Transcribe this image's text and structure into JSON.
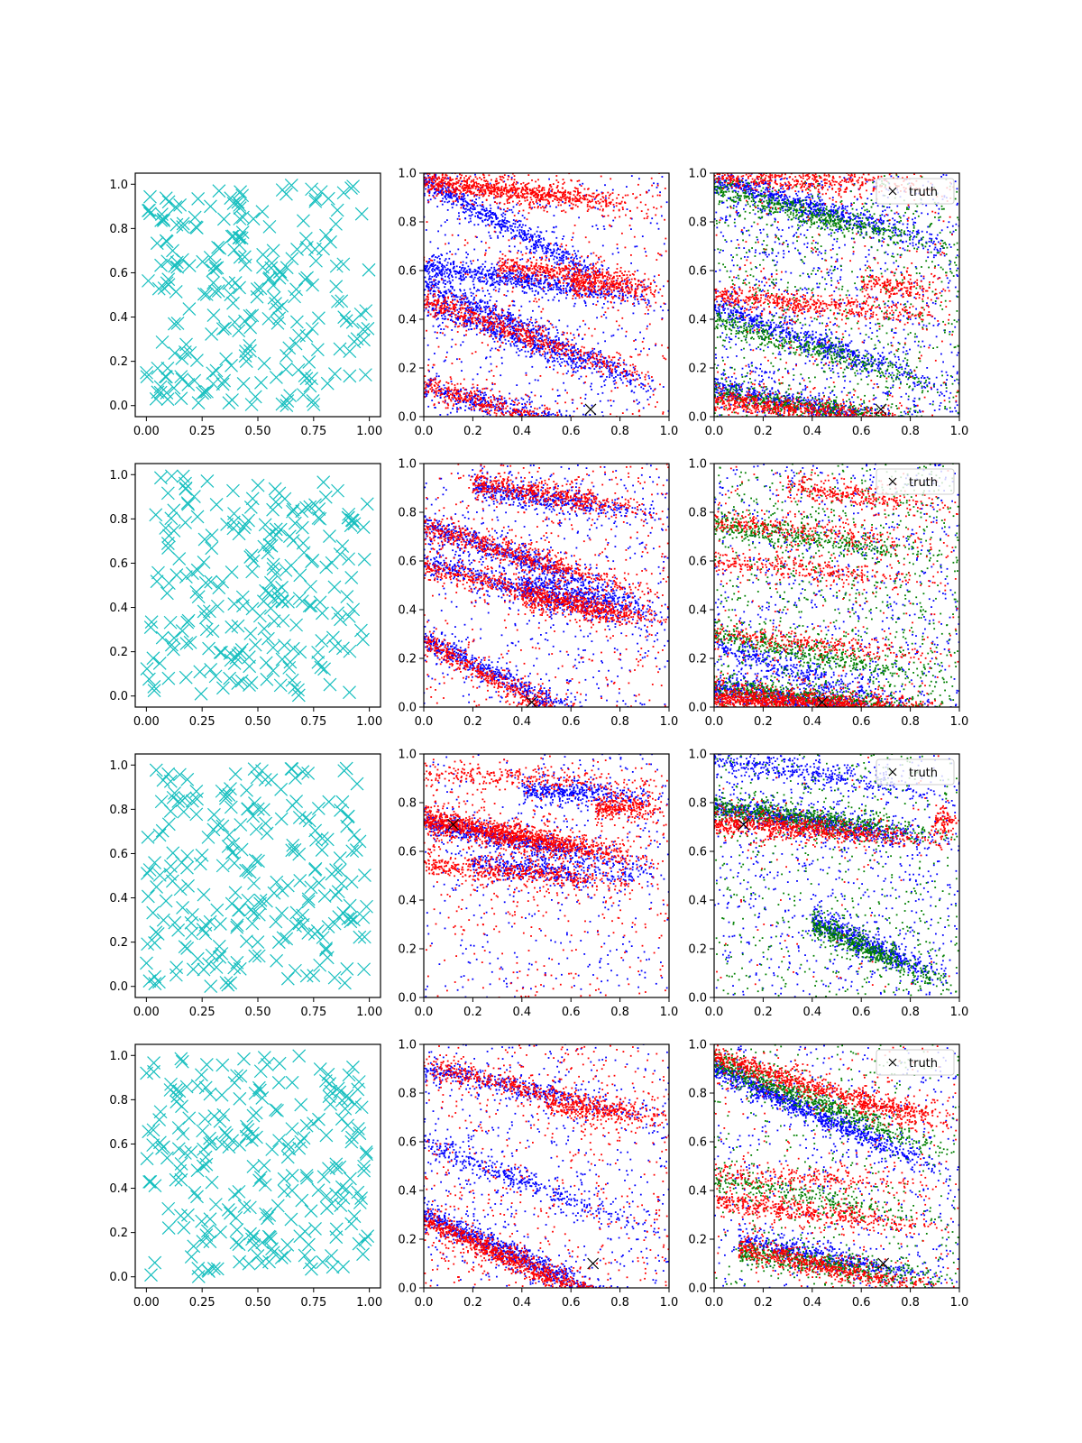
{
  "chart_data": [
    {
      "type": "scatter",
      "row": 1,
      "col": 1,
      "seed": 11,
      "n": 240,
      "marker": "x",
      "xlim": [
        -0.05,
        1.05
      ],
      "ylim": [
        -0.05,
        1.05
      ],
      "xticks": [
        "0.00",
        "0.25",
        "0.50",
        "0.75",
        "1.00"
      ],
      "yticks": [
        "0.0",
        "0.2",
        "0.4",
        "0.6",
        "0.8",
        "1.0"
      ],
      "series": [
        {
          "color": "#17bfbf"
        }
      ]
    },
    {
      "type": "scatter",
      "row": 1,
      "col": 2,
      "seed": 12,
      "xlim": [
        0,
        1
      ],
      "ylim": [
        0,
        1
      ],
      "xticks": [
        "0.0",
        "0.2",
        "0.4",
        "0.6",
        "0.8",
        "1.0"
      ],
      "yticks": [
        "0.0",
        "0.2",
        "0.4",
        "0.6",
        "0.8",
        "1.0"
      ],
      "truth": {
        "x": 0.68,
        "y": 0.03
      },
      "series": [
        {
          "color": "#0000ff",
          "bands": [
            [
              0.0,
              0.97,
              -0.55,
              700
            ],
            [
              0.0,
              0.45,
              -0.35,
              500
            ],
            [
              0.0,
              0.12,
              -0.25,
              500
            ],
            [
              0.0,
              0.62,
              -0.15,
              700
            ],
            [
              0.0,
              0.55,
              -0.45,
              600
            ]
          ],
          "noise": 400
        },
        {
          "color": "#ff0000",
          "bands": [
            [
              0.0,
              0.97,
              -0.12,
              900
            ],
            [
              0.0,
              0.48,
              -0.35,
              600
            ],
            [
              0.0,
              0.13,
              -0.3,
              500
            ],
            [
              0.3,
              0.62,
              -0.1,
              400
            ],
            [
              0.6,
              0.55,
              -0.1,
              300
            ]
          ],
          "noise": 350
        }
      ]
    },
    {
      "type": "scatter",
      "row": 1,
      "col": 3,
      "seed": 13,
      "xlim": [
        0,
        1
      ],
      "ylim": [
        0,
        1
      ],
      "xticks": [
        "0.0",
        "0.2",
        "0.4",
        "0.6",
        "0.8",
        "1.0"
      ],
      "yticks": [
        "0.0",
        "0.2",
        "0.4",
        "0.6",
        "0.8",
        "1.0"
      ],
      "truth": {
        "x": 0.68,
        "y": 0.03
      },
      "legend": {
        "label": "truth",
        "loc": "upper right"
      },
      "series": [
        {
          "color": "#0000ff",
          "bands": [
            [
              0.0,
              0.97,
              -0.28,
              700
            ],
            [
              0.0,
              0.45,
              -0.35,
              600
            ],
            [
              0.0,
              0.12,
              -0.2,
              600
            ]
          ],
          "noise": 900
        },
        {
          "color": "#008000",
          "bands": [
            [
              0.0,
              0.93,
              -0.25,
              500
            ],
            [
              0.0,
              0.4,
              -0.3,
              400
            ],
            [
              0.0,
              0.1,
              -0.15,
              400
            ]
          ],
          "noise": 700
        },
        {
          "color": "#ff0000",
          "bands": [
            [
              0.0,
              0.99,
              -0.05,
              500
            ],
            [
              0.0,
              0.5,
              -0.1,
              500
            ],
            [
              0.0,
              0.07,
              -0.12,
              700
            ],
            [
              0.6,
              0.55,
              -0.1,
              200
            ]
          ],
          "noise": 250
        }
      ]
    },
    {
      "type": "scatter",
      "row": 2,
      "col": 1,
      "seed": 21,
      "n": 230,
      "marker": "x",
      "xlim": [
        -0.05,
        1.05
      ],
      "ylim": [
        -0.05,
        1.05
      ],
      "xticks": [
        "0.00",
        "0.25",
        "0.50",
        "0.75",
        "1.00"
      ],
      "yticks": [
        "0.0",
        "0.2",
        "0.4",
        "0.6",
        "0.8",
        "1.0"
      ],
      "series": [
        {
          "color": "#17bfbf"
        }
      ]
    },
    {
      "type": "scatter",
      "row": 2,
      "col": 2,
      "seed": 22,
      "xlim": [
        0,
        1
      ],
      "ylim": [
        0,
        1
      ],
      "xticks": [
        "0.0",
        "0.2",
        "0.4",
        "0.6",
        "0.8",
        "1.0"
      ],
      "yticks": [
        "0.0",
        "0.2",
        "0.4",
        "0.6",
        "0.8",
        "1.0"
      ],
      "truth": {
        "x": 0.44,
        "y": 0.02
      },
      "series": [
        {
          "color": "#0000ff",
          "bands": [
            [
              0.0,
              0.75,
              -0.35,
              600
            ],
            [
              0.0,
              0.28,
              -0.5,
              600
            ],
            [
              0.0,
              0.6,
              -0.3,
              500
            ],
            [
              0.2,
              0.9,
              -0.15,
              500
            ],
            [
              0.4,
              0.5,
              -0.2,
              400
            ]
          ],
          "noise": 450
        },
        {
          "color": "#ff0000",
          "bands": [
            [
              0.0,
              0.74,
              -0.3,
              600
            ],
            [
              0.0,
              0.27,
              -0.55,
              600
            ],
            [
              0.0,
              0.58,
              -0.25,
              500
            ],
            [
              0.2,
              0.92,
              -0.15,
              500
            ],
            [
              0.4,
              0.45,
              -0.15,
              400
            ]
          ],
          "noise": 400
        }
      ]
    },
    {
      "type": "scatter",
      "row": 2,
      "col": 3,
      "seed": 23,
      "xlim": [
        0,
        1
      ],
      "ylim": [
        0,
        1
      ],
      "xticks": [
        "0.0",
        "0.2",
        "0.4",
        "0.6",
        "0.8",
        "1.0"
      ],
      "yticks": [
        "0.0",
        "0.2",
        "0.4",
        "0.6",
        "0.8",
        "1.0"
      ],
      "truth": {
        "x": 0.44,
        "y": 0.02
      },
      "legend": {
        "label": "truth",
        "loc": "upper right"
      },
      "series": [
        {
          "color": "#0000ff",
          "bands": [
            [
              0.0,
              0.08,
              -0.15,
              700
            ],
            [
              0.0,
              0.25,
              -0.3,
              400
            ]
          ],
          "noise": 700
        },
        {
          "color": "#008000",
          "bands": [
            [
              0.0,
              0.75,
              -0.15,
              400
            ],
            [
              0.0,
              0.3,
              -0.2,
              400
            ],
            [
              0.0,
              0.08,
              -0.1,
              500
            ]
          ],
          "noise": 800
        },
        {
          "color": "#ff0000",
          "bands": [
            [
              0.0,
              0.04,
              -0.06,
              1200
            ],
            [
              0.0,
              0.76,
              -0.1,
              300
            ],
            [
              0.0,
              0.6,
              -0.1,
              300
            ],
            [
              0.0,
              0.3,
              -0.1,
              300
            ],
            [
              0.3,
              0.9,
              -0.12,
              300
            ]
          ],
          "noise": 200
        }
      ]
    },
    {
      "type": "scatter",
      "row": 3,
      "col": 1,
      "seed": 31,
      "n": 240,
      "marker": "x",
      "xlim": [
        -0.05,
        1.05
      ],
      "ylim": [
        -0.05,
        1.05
      ],
      "xticks": [
        "0.00",
        "0.25",
        "0.50",
        "0.75",
        "1.00"
      ],
      "yticks": [
        "0.0",
        "0.2",
        "0.4",
        "0.6",
        "0.8",
        "1.0"
      ],
      "series": [
        {
          "color": "#17bfbf"
        }
      ]
    },
    {
      "type": "scatter",
      "row": 3,
      "col": 2,
      "seed": 32,
      "xlim": [
        0,
        1
      ],
      "ylim": [
        0,
        1
      ],
      "xticks": [
        "0.0",
        "0.2",
        "0.4",
        "0.6",
        "0.8",
        "1.0"
      ],
      "yticks": [
        "0.0",
        "0.2",
        "0.4",
        "0.6",
        "0.8",
        "1.0"
      ],
      "truth": {
        "x": 0.12,
        "y": 0.71
      },
      "series": [
        {
          "color": "#0000ff",
          "bands": [
            [
              0.0,
              0.72,
              -0.2,
              700
            ],
            [
              0.2,
              0.55,
              -0.1,
              400
            ],
            [
              0.4,
              0.85,
              -0.05,
              400
            ]
          ],
          "noise": 400
        },
        {
          "color": "#ff0000",
          "bands": [
            [
              0.0,
              0.73,
              -0.18,
              1300
            ],
            [
              0.0,
              0.92,
              -0.05,
              300
            ],
            [
              0.0,
              0.55,
              -0.1,
              500
            ],
            [
              0.7,
              0.78,
              0.0,
              300
            ]
          ],
          "noise": 350
        }
      ]
    },
    {
      "type": "scatter",
      "row": 3,
      "col": 3,
      "seed": 33,
      "xlim": [
        0,
        1
      ],
      "ylim": [
        0,
        1
      ],
      "xticks": [
        "0.0",
        "0.2",
        "0.4",
        "0.6",
        "0.8",
        "1.0"
      ],
      "yticks": [
        "0.0",
        "0.2",
        "0.4",
        "0.6",
        "0.8",
        "1.0"
      ],
      "truth": {
        "x": 0.12,
        "y": 0.71
      },
      "legend": {
        "label": "truth",
        "loc": "upper right"
      },
      "series": [
        {
          "color": "#0000ff",
          "bands": [
            [
              0.0,
              0.78,
              -0.15,
              800
            ],
            [
              0.4,
              0.32,
              -0.45,
              600
            ],
            [
              0.0,
              0.98,
              -0.15,
              400
            ]
          ],
          "noise": 600
        },
        {
          "color": "#008000",
          "bands": [
            [
              0.0,
              0.78,
              -0.12,
              700
            ],
            [
              0.4,
              0.3,
              -0.45,
              500
            ]
          ],
          "noise": 500
        },
        {
          "color": "#ff0000",
          "bands": [
            [
              0.0,
              0.72,
              -0.08,
              800
            ],
            [
              0.9,
              0.72,
              0.0,
              100
            ]
          ],
          "noise": 60
        }
      ]
    },
    {
      "type": "scatter",
      "row": 4,
      "col": 1,
      "seed": 41,
      "n": 240,
      "marker": "x",
      "xlim": [
        -0.05,
        1.05
      ],
      "ylim": [
        -0.05,
        1.05
      ],
      "xticks": [
        "0.00",
        "0.25",
        "0.50",
        "0.75",
        "1.00"
      ],
      "yticks": [
        "0.0",
        "0.2",
        "0.4",
        "0.6",
        "0.8",
        "1.0"
      ],
      "series": [
        {
          "color": "#17bfbf"
        }
      ]
    },
    {
      "type": "scatter",
      "row": 4,
      "col": 2,
      "seed": 42,
      "xlim": [
        0,
        1
      ],
      "ylim": [
        0,
        1
      ],
      "xticks": [
        "0.0",
        "0.2",
        "0.4",
        "0.6",
        "0.8",
        "1.0"
      ],
      "yticks": [
        "0.0",
        "0.2",
        "0.4",
        "0.6",
        "0.8",
        "1.0"
      ],
      "truth": {
        "x": 0.69,
        "y": 0.1
      },
      "series": [
        {
          "color": "#0000ff",
          "bands": [
            [
              0.0,
              0.3,
              -0.45,
              900
            ],
            [
              0.0,
              0.9,
              -0.2,
              400
            ],
            [
              0.0,
              0.6,
              -0.4,
              400
            ]
          ],
          "noise": 500
        },
        {
          "color": "#ff0000",
          "bands": [
            [
              0.0,
              0.28,
              -0.45,
              1000
            ],
            [
              0.0,
              0.92,
              -0.25,
              400
            ],
            [
              0.5,
              0.75,
              -0.1,
              300
            ]
          ],
          "noise": 500
        }
      ]
    },
    {
      "type": "scatter",
      "row": 4,
      "col": 3,
      "seed": 43,
      "xlim": [
        0,
        1
      ],
      "ylim": [
        0,
        1
      ],
      "xticks": [
        "0.0",
        "0.2",
        "0.4",
        "0.6",
        "0.8",
        "1.0"
      ],
      "yticks": [
        "0.0",
        "0.2",
        "0.4",
        "0.6",
        "0.8",
        "1.0"
      ],
      "truth": {
        "x": 0.69,
        "y": 0.1
      },
      "legend": {
        "label": "truth",
        "loc": "upper right"
      },
      "series": [
        {
          "color": "#0000ff",
          "bands": [
            [
              0.0,
              0.9,
              -0.45,
              1000
            ],
            [
              0.1,
              0.2,
              -0.2,
              500
            ]
          ],
          "noise": 500
        },
        {
          "color": "#008000",
          "bands": [
            [
              0.0,
              0.93,
              -0.4,
              700
            ],
            [
              0.1,
              0.15,
              -0.15,
              500
            ],
            [
              0.0,
              0.45,
              -0.2,
              300
            ]
          ],
          "noise": 400
        },
        {
          "color": "#ff0000",
          "bands": [
            [
              0.0,
              0.95,
              -0.3,
              700
            ],
            [
              0.0,
              0.36,
              -0.12,
              500
            ],
            [
              0.1,
              0.16,
              -0.2,
              600
            ],
            [
              0.0,
              0.47,
              -0.05,
              250
            ],
            [
              0.6,
              0.75,
              -0.1,
              200
            ]
          ],
          "noise": 200
        }
      ]
    }
  ]
}
